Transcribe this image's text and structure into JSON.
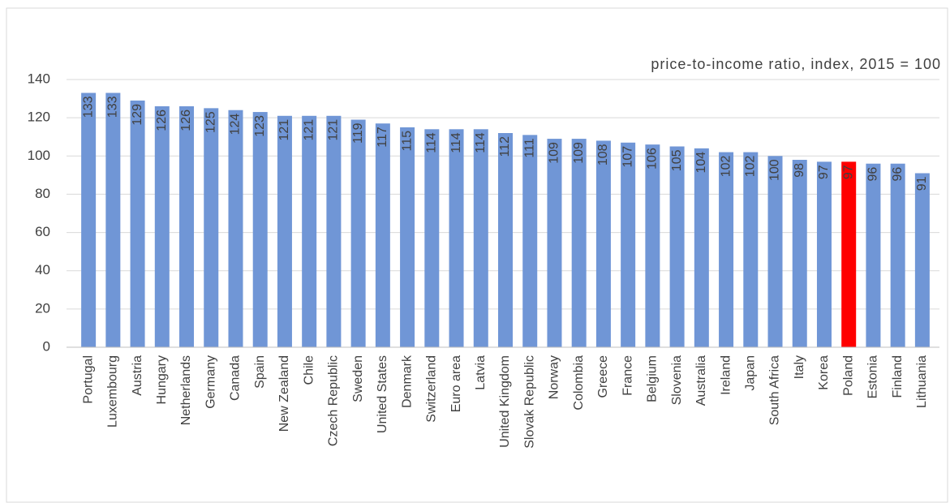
{
  "chart_data": {
    "type": "bar",
    "subtitle": "price-to-income ratio, index, 2015 = 100",
    "categories": [
      "Portugal",
      "Luxembourg",
      "Austria",
      "Hungary",
      "Netherlands",
      "Germany",
      "Canada",
      "Spain",
      "New Zealand",
      "Chile",
      "Czech Republic",
      "Sweden",
      "United States",
      "Denmark",
      "Switzerland",
      "Euro area",
      "Latvia",
      "United Kingdom",
      "Slovak Republic",
      "Norway",
      "Colombia",
      "Greece",
      "France",
      "Belgium",
      "Slovenia",
      "Australia",
      "Ireland",
      "Japan",
      "South Africa",
      "Italy",
      "Korea",
      "Poland",
      "Estonia",
      "Finland",
      "Lithuania"
    ],
    "values": [
      133,
      133,
      129,
      126,
      126,
      125,
      124,
      123,
      121,
      121,
      121,
      119,
      117,
      115,
      114,
      114,
      114,
      112,
      111,
      109,
      109,
      108,
      107,
      106,
      105,
      104,
      102,
      102,
      100,
      98,
      97,
      97,
      96,
      96,
      91
    ],
    "colors": [
      "#7096d6",
      "#7096d6",
      "#7096d6",
      "#7096d6",
      "#7096d6",
      "#7096d6",
      "#7096d6",
      "#7096d6",
      "#7096d6",
      "#7096d6",
      "#7096d6",
      "#7096d6",
      "#7096d6",
      "#7096d6",
      "#7096d6",
      "#7096d6",
      "#7096d6",
      "#7096d6",
      "#7096d6",
      "#7096d6",
      "#7096d6",
      "#7096d6",
      "#7096d6",
      "#7096d6",
      "#7096d6",
      "#7096d6",
      "#7096d6",
      "#7096d6",
      "#7096d6",
      "#7096d6",
      "#7096d6",
      "#ff0000",
      "#7096d6",
      "#7096d6",
      "#7096d6"
    ],
    "ylim": [
      0,
      140
    ],
    "yticks": [
      0,
      20,
      40,
      60,
      80,
      100,
      120,
      140
    ],
    "grid": true
  }
}
